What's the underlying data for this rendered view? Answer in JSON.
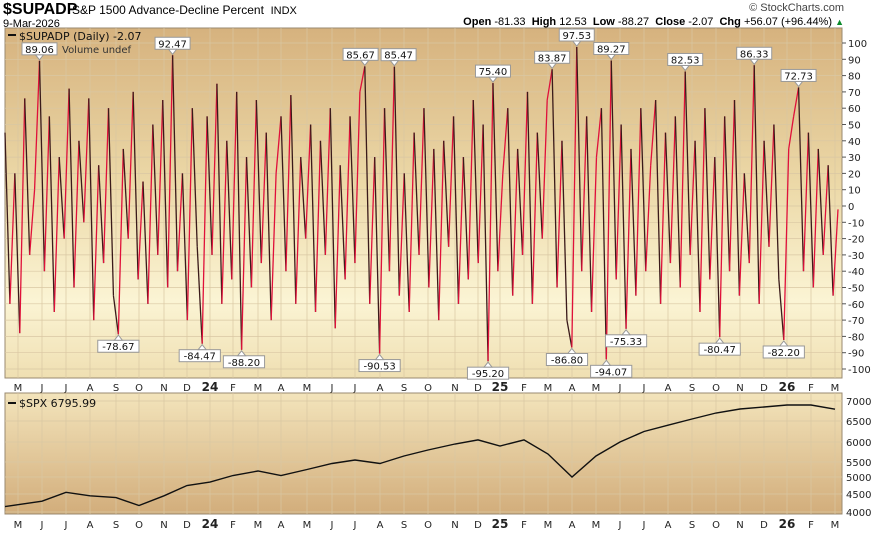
{
  "header": {
    "symbol": "$SUPADP",
    "name": "S&P 1500 Advance-Decline Percent",
    "exchange": "INDX",
    "date": "9-Mar-2026",
    "brand": "© StockCharts.com",
    "open_label": "Open",
    "open": "-81.33",
    "high_label": "High",
    "high": "12.53",
    "low_label": "Low",
    "low": "-88.27",
    "close_label": "Close",
    "close": "-2.07",
    "chg_label": "Chg",
    "chg": "+56.07 (+96.44%)",
    "chg_direction": "up"
  },
  "chart_data": [
    {
      "type": "line",
      "legend": "$SUPADP (Daily) -2.07",
      "volume_note": "Volume undef",
      "ylim": [
        -100,
        100
      ],
      "yticks": [
        100,
        90,
        80,
        70,
        60,
        50,
        40,
        30,
        20,
        10,
        0,
        -10,
        -20,
        -30,
        -40,
        -50,
        -60,
        -70,
        -80,
        -90,
        -100
      ],
      "x_range": [
        "May 2023",
        "Mar 2026"
      ],
      "xtick_labels": [
        "M",
        "J",
        "J",
        "A",
        "S",
        "O",
        "N",
        "D",
        "24",
        "F",
        "M",
        "A",
        "M",
        "J",
        "J",
        "A",
        "S",
        "O",
        "N",
        "D",
        "25",
        "F",
        "M",
        "A",
        "M",
        "J",
        "J",
        "A",
        "S",
        "O",
        "N",
        "D",
        "26",
        "F",
        "M"
      ],
      "grid": true,
      "colors": {
        "up": "#e0103a",
        "down": "#3a1a1a"
      },
      "values": [
        45,
        -60,
        20,
        -78,
        66,
        -30,
        10,
        89.06,
        -40,
        55,
        -65,
        30,
        -20,
        72,
        -50,
        40,
        -10,
        66,
        -70,
        25,
        -35,
        60,
        -55,
        -78.67,
        35,
        -20,
        70,
        -45,
        15,
        -60,
        50,
        -30,
        65,
        -50,
        92.47,
        -40,
        20,
        -70,
        60,
        -25,
        -84.47,
        55,
        -30,
        75,
        -60,
        40,
        -45,
        70,
        -88.2,
        30,
        -50,
        65,
        -35,
        45,
        -70,
        20,
        55,
        -40,
        68,
        -60,
        30,
        -20,
        50,
        -65,
        40,
        -30,
        60,
        -75,
        25,
        -45,
        55,
        -35,
        70,
        85.67,
        -60,
        30,
        -90.53,
        60,
        -40,
        85.47,
        -55,
        20,
        -65,
        45,
        -30,
        60,
        -50,
        35,
        -70,
        40,
        -25,
        55,
        -60,
        30,
        -45,
        65,
        -35,
        50,
        -95.2,
        75.4,
        -40,
        20,
        60,
        -55,
        35,
        -30,
        70,
        -60,
        45,
        -20,
        65,
        83.87,
        -50,
        40,
        -70,
        -86.8,
        97.53,
        -40,
        55,
        -65,
        30,
        60,
        -94.07,
        89.27,
        -45,
        50,
        -75.33,
        35,
        -55,
        60,
        -40,
        25,
        65,
        -60,
        45,
        -35,
        55,
        -50,
        82.53,
        -30,
        40,
        -65,
        60,
        -45,
        30,
        -80.47,
        55,
        -40,
        65,
        -55,
        20,
        -35,
        86.33,
        -60,
        40,
        -25,
        50,
        -45,
        -82.2,
        35,
        55,
        72.73,
        -40,
        45,
        -50,
        35,
        -30,
        25,
        -55,
        -2.07
      ],
      "annotations": [
        {
          "index": 7,
          "label": "89.06"
        },
        {
          "index": 23,
          "label": "-78.67"
        },
        {
          "index": 34,
          "label": "92.47"
        },
        {
          "index": 40,
          "label": "-84.47"
        },
        {
          "index": 48,
          "label": "-88.20"
        },
        {
          "index": 73,
          "label": "85.67"
        },
        {
          "index": 76,
          "label": "-90.53"
        },
        {
          "index": 79,
          "label": "85.47"
        },
        {
          "index": 98,
          "label": "-95.20"
        },
        {
          "index": 99,
          "label": "75.40"
        },
        {
          "index": 111,
          "label": "83.87"
        },
        {
          "index": 115,
          "label": "-86.80"
        },
        {
          "index": 116,
          "label": "97.53"
        },
        {
          "index": 122,
          "label": "-94.07"
        },
        {
          "index": 123,
          "label": "89.27"
        },
        {
          "index": 126,
          "label": "-75.33"
        },
        {
          "index": 138,
          "label": "82.53"
        },
        {
          "index": 145,
          "label": "-80.47"
        },
        {
          "index": 152,
          "label": "86.33"
        },
        {
          "index": 158,
          "label": "-82.20"
        },
        {
          "index": 161,
          "label": "72.73"
        }
      ]
    },
    {
      "type": "line",
      "legend": "$SPX 6795.99",
      "ylim": [
        4000,
        7000
      ],
      "yticks": [
        7000,
        6500,
        6000,
        5500,
        5000,
        4500,
        4000
      ],
      "xtick_labels": [
        "M",
        "J",
        "J",
        "A",
        "S",
        "O",
        "N",
        "D",
        "24",
        "F",
        "M",
        "A",
        "M",
        "J",
        "J",
        "A",
        "S",
        "O",
        "N",
        "D",
        "25",
        "F",
        "M",
        "A",
        "M",
        "J",
        "J",
        "A",
        "S",
        "O",
        "N",
        "D",
        "26",
        "F",
        "M"
      ],
      "grid": true,
      "color": "#111111",
      "values": [
        4150,
        4300,
        4550,
        4450,
        4400,
        4180,
        4450,
        4750,
        4850,
        5050,
        5200,
        5050,
        5250,
        5450,
        5550,
        5450,
        5650,
        5800,
        5950,
        6050,
        5900,
        6050,
        5700,
        5000,
        5650,
        6000,
        6250,
        6400,
        6550,
        6700,
        6800,
        6850,
        6900,
        6900,
        6796
      ]
    }
  ]
}
